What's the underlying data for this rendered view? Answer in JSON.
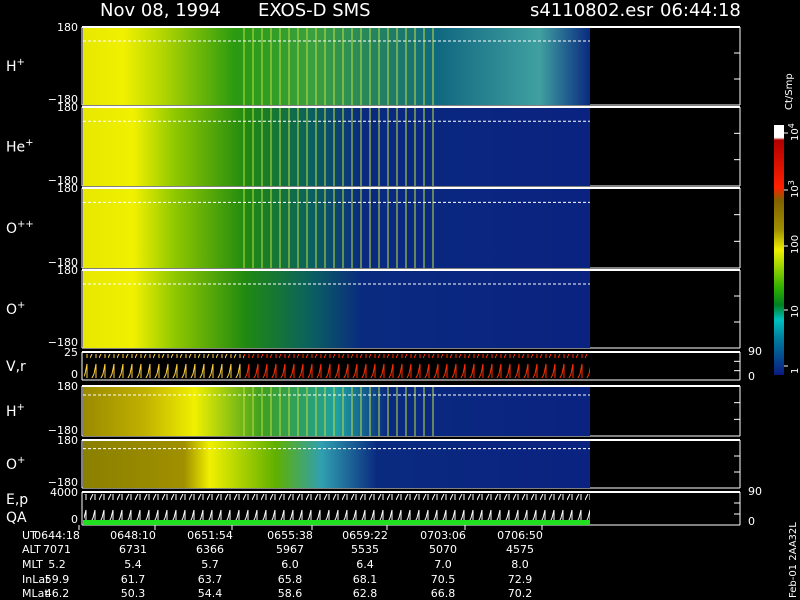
{
  "header": {
    "date": "Nov 08, 1994",
    "instrument": "EXOS-D SMS",
    "file": "s4110802.esr",
    "time": "06:44:18"
  },
  "panels": [
    {
      "label": "H",
      "sup": "+",
      "top": "180",
      "bottom": "−180"
    },
    {
      "label": "He",
      "sup": "+",
      "top": "180",
      "bottom": "−180"
    },
    {
      "label": "O",
      "sup": "++",
      "top": "180",
      "bottom": "−180"
    },
    {
      "label": "O",
      "sup": "+",
      "top": "180",
      "bottom": "−180"
    },
    {
      "label": "V,r",
      "top": "25",
      "bottom": "0",
      "right_top": "90",
      "right_bottom": "0"
    },
    {
      "label": "H",
      "sup": "+",
      "top": "180",
      "bottom": "−180"
    },
    {
      "label": "O",
      "sup": "+",
      "top": "180",
      "bottom": "−180"
    },
    {
      "label": "E,p",
      "label2": "QA",
      "top": "4000",
      "bottom": "0",
      "right_top": "90",
      "right_bottom": "0"
    }
  ],
  "colorbar": {
    "unit": "Ct/Smp",
    "ticks": [
      {
        "base": "10",
        "exp": "4"
      },
      {
        "base": "10",
        "exp": "3"
      },
      "100",
      "10",
      "1"
    ]
  },
  "table": {
    "rows": [
      [
        "UT",
        "0644:18",
        "0648:10",
        "0651:54",
        "0655:38",
        "0659:22",
        "0703:06",
        "0706:50"
      ],
      [
        "ALT",
        "7071",
        "6731",
        "6366",
        "5967",
        "5535",
        "5070",
        "4575"
      ],
      [
        "MLT",
        "5.2",
        "5.4",
        "5.7",
        "6.0",
        "6.4",
        "7.0",
        "8.0"
      ],
      [
        "InLat",
        "59.9",
        "61.7",
        "63.7",
        "65.8",
        "68.1",
        "70.5",
        "72.9"
      ],
      [
        "MLat",
        "46.2",
        "50.3",
        "54.4",
        "58.6",
        "62.8",
        "66.8",
        "70.2"
      ]
    ]
  },
  "footer": "Feb-01 2AA32L"
}
